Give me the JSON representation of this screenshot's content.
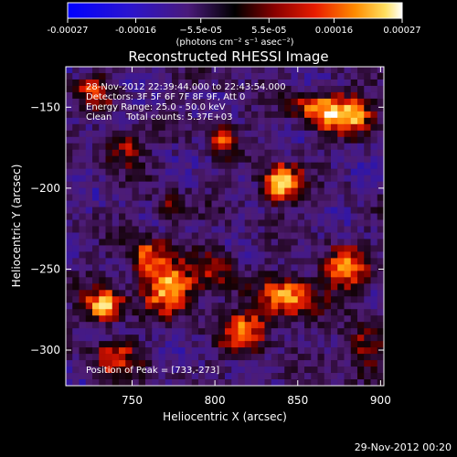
{
  "colorbar": {
    "tick_labels": [
      "-0.00027",
      "-0.00016",
      "−5.5e-05",
      "5.5e-05",
      "0.00016",
      "0.00027"
    ],
    "tick_values": [
      -0.00027,
      -0.00016,
      -5.5e-05,
      5.5e-05,
      0.00016,
      0.00027
    ],
    "unit_label": "(photons cm⁻² s⁻¹ asec⁻²)",
    "range": [
      -0.00027,
      0.00027
    ]
  },
  "chart_data": {
    "type": "heatmap",
    "title": "Reconstructed RHESSI Image",
    "xlabel": "Heliocentric X (arcsec)",
    "ylabel": "Heliocentric Y (arcsec)",
    "xlim": [
      710,
      902
    ],
    "ylim": [
      -322,
      -125
    ],
    "x_ticks": [
      750,
      800,
      850,
      900
    ],
    "y_ticks": [
      -150,
      -200,
      -250,
      -300
    ],
    "x_tick_labels": [
      "750",
      "800",
      "850",
      "900"
    ],
    "y_tick_labels": [
      "−150",
      "−200",
      "−250",
      "−300"
    ],
    "annotations": [
      "28-Nov-2012 22:39:44.000 to 22:43:54.000",
      "Detectors: 3F 5F 6F 7F 8F 9F, Att 0",
      "Energy Range: 25.0 - 50.0 keV",
      "Clean     Total counts: 5.37E+03"
    ],
    "peak_label": "Position of Peak = [733,-273]",
    "peak_position": [
      733,
      -273
    ],
    "grid_resolution": [
      48,
      50
    ],
    "bright_sources": [
      {
        "x": 840,
        "y": -197,
        "amp": 1.0,
        "sx": 8,
        "sy": 8
      },
      {
        "x": 805,
        "y": -170,
        "amp": 0.55,
        "sx": 6,
        "sy": 7
      },
      {
        "x": 733,
        "y": -273,
        "amp": 0.95,
        "sx": 8,
        "sy": 7
      },
      {
        "x": 772,
        "y": -262,
        "amp": 0.85,
        "sx": 11,
        "sy": 10
      },
      {
        "x": 760,
        "y": -242,
        "amp": 0.6,
        "sx": 9,
        "sy": 8
      },
      {
        "x": 880,
        "y": -155,
        "amp": 0.85,
        "sx": 12,
        "sy": 8
      },
      {
        "x": 860,
        "y": -150,
        "amp": 0.55,
        "sx": 10,
        "sy": 7
      },
      {
        "x": 845,
        "y": -268,
        "amp": 0.8,
        "sx": 12,
        "sy": 9
      },
      {
        "x": 878,
        "y": -250,
        "amp": 0.7,
        "sx": 10,
        "sy": 9
      },
      {
        "x": 818,
        "y": -288,
        "amp": 0.7,
        "sx": 10,
        "sy": 9
      },
      {
        "x": 800,
        "y": -250,
        "amp": 0.45,
        "sx": 9,
        "sy": 10
      },
      {
        "x": 745,
        "y": -175,
        "amp": 0.5,
        "sx": 8,
        "sy": 8
      },
      {
        "x": 728,
        "y": -140,
        "amp": 0.45,
        "sx": 8,
        "sy": 7
      },
      {
        "x": 740,
        "y": -305,
        "amp": 0.55,
        "sx": 9,
        "sy": 8
      },
      {
        "x": 890,
        "y": -300,
        "amp": 0.5,
        "sx": 9,
        "sy": 10
      },
      {
        "x": 773,
        "y": -212,
        "amp": 0.35,
        "sx": 7,
        "sy": 7
      }
    ]
  },
  "footer": {
    "timestamp": "29-Nov-2012 00:20"
  }
}
